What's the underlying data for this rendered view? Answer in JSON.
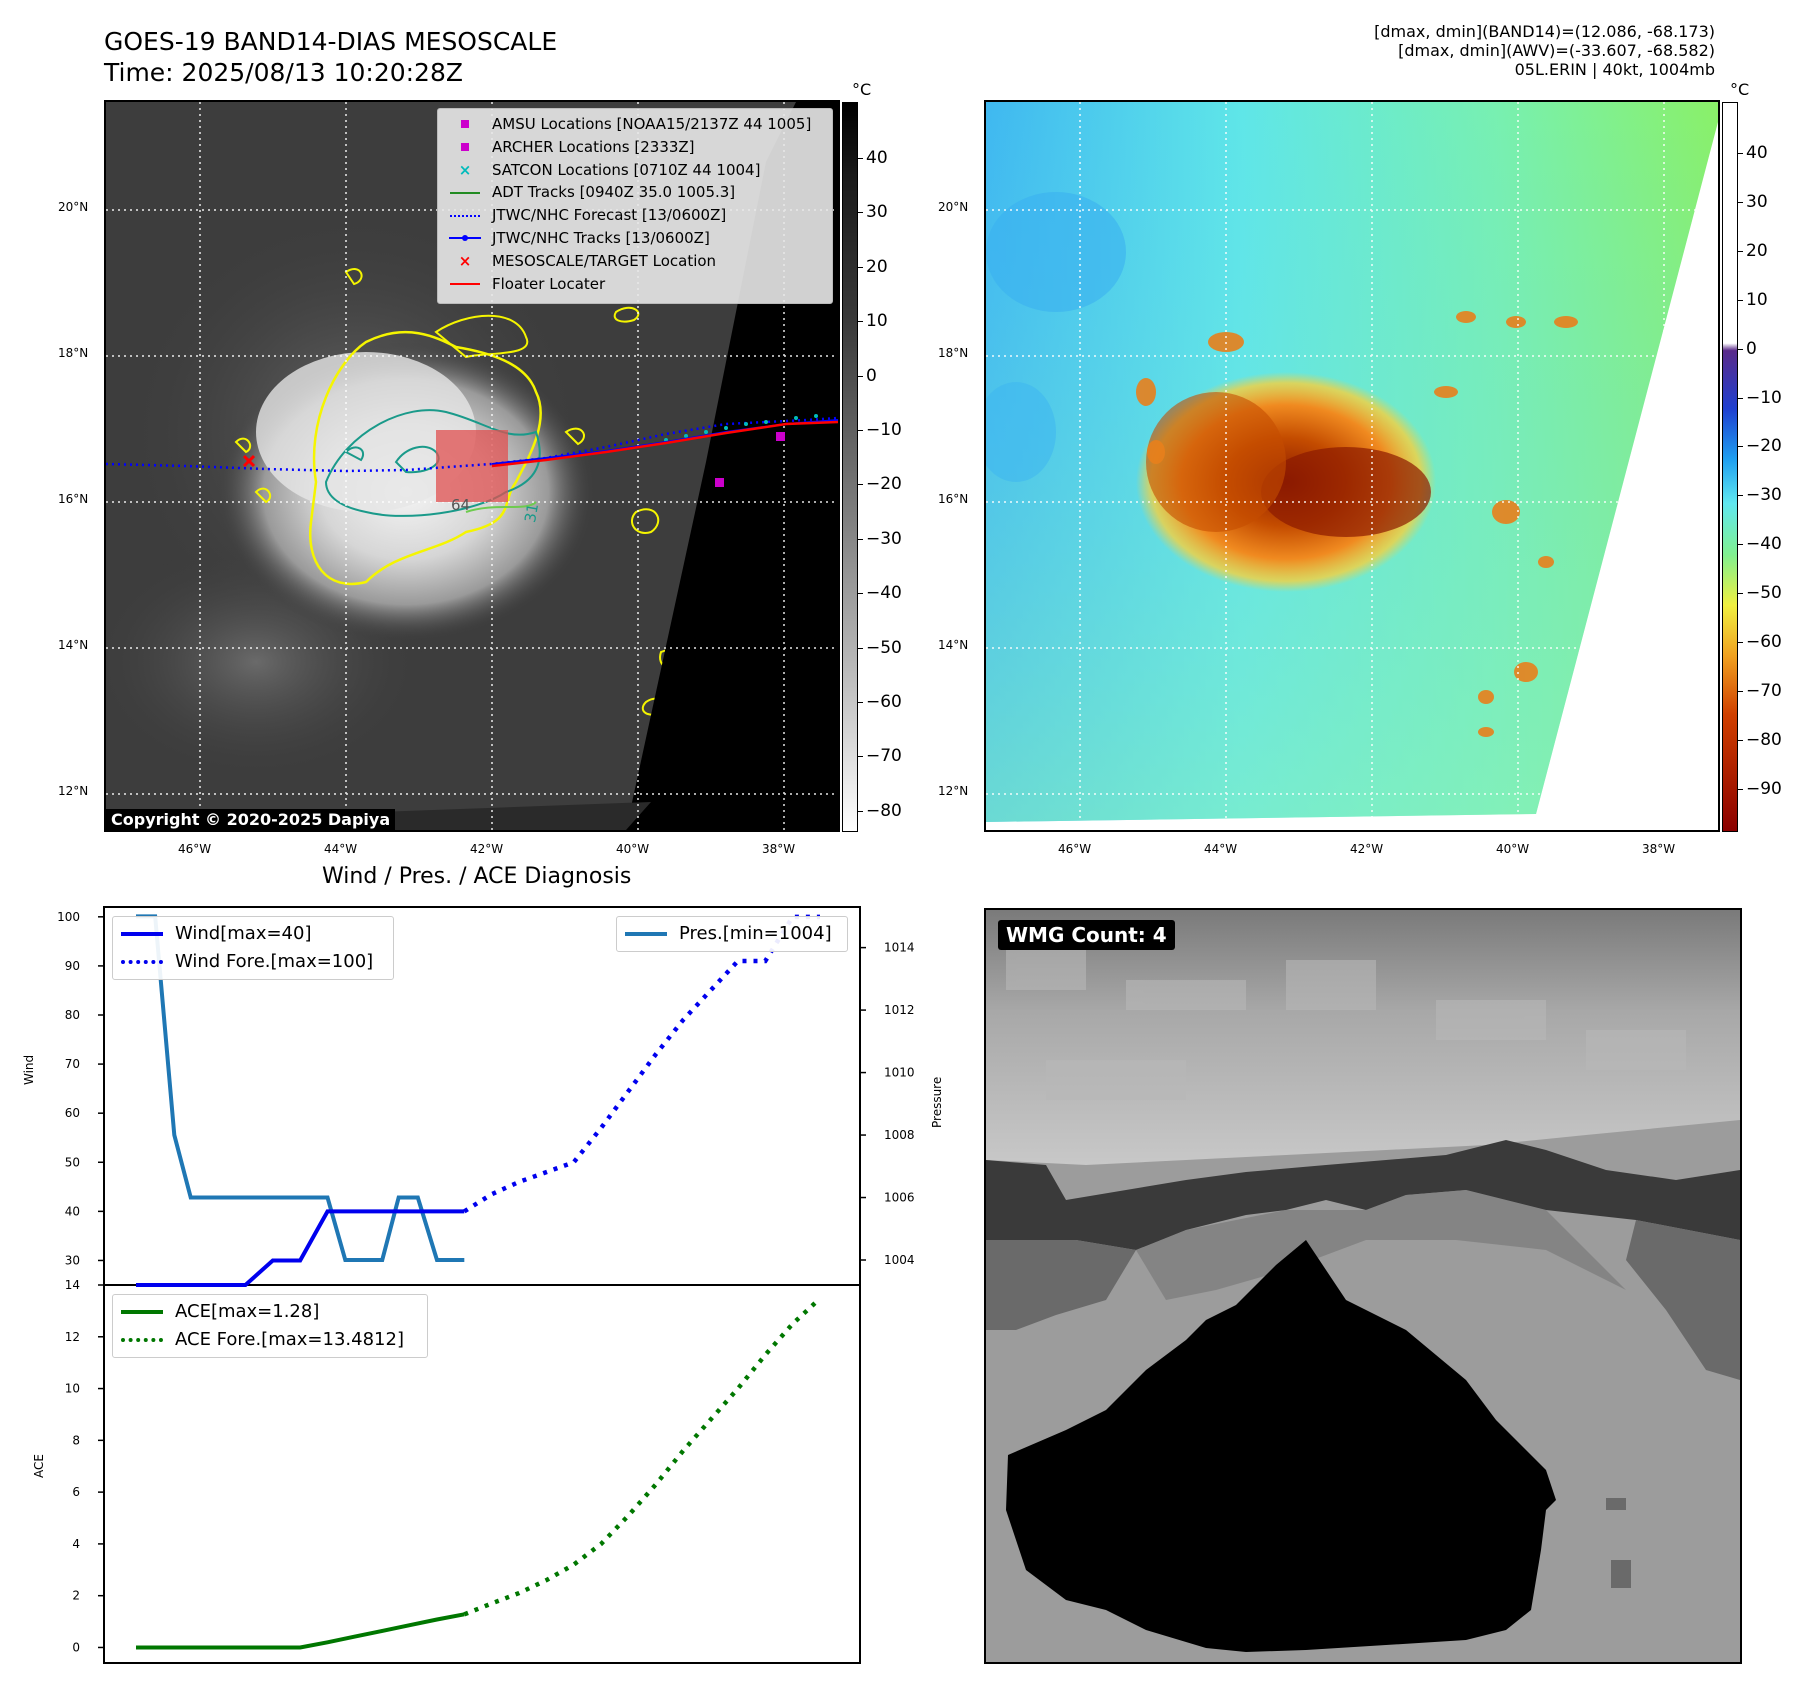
{
  "header": {
    "title_line1": "GOES-19 BAND14-DIAS MESOSCALE",
    "title_line2": "Time: 2025/08/13 10:20:28Z",
    "info_line1": "[dmax, dmin](BAND14)=(12.086, -68.173)",
    "info_line2": "[dmax, dmin](AWV)=(-33.607, -68.582)",
    "info_line3": "05L.ERIN | 40kt, 1004mb"
  },
  "colors": {
    "amsu": "#cc00cc",
    "archer": "#cc00cc",
    "satcon": "#00bbbb",
    "adt": "#228b22",
    "forecast": "#0000ff",
    "tracks": "#0000ff",
    "target": "#ff0000",
    "floater": "#ff0000",
    "wind": "#0000ee",
    "pres": "#1f77b4",
    "ace": "#007700",
    "contour_yellow": "#f5f500",
    "contour_teal": "#1a9a8a"
  },
  "map_left": {
    "lat_labels": [
      "20°N",
      "18°N",
      "16°N",
      "14°N",
      "12°N"
    ],
    "lon_labels": [
      "46°W",
      "44°W",
      "42°W",
      "40°W",
      "38°W"
    ],
    "colorbar_unit": "°C",
    "colorbar_ticks": [
      "40",
      "30",
      "20",
      "10",
      "0",
      "−10",
      "−20",
      "−30",
      "−40",
      "−50",
      "−60",
      "−70",
      "−80"
    ],
    "copyright": "Copyright © 2020-2025 Dapiya",
    "contour_labels": [
      "64",
      "31"
    ],
    "legend": [
      {
        "symbol": "square-icon",
        "label": "AMSU Locations [NOAA15/2137Z 44 1005]"
      },
      {
        "symbol": "square-icon",
        "label": "ARCHER Locations [2333Z]"
      },
      {
        "symbol": "x-icon",
        "label": "SATCON Locations [0710Z 44 1004]"
      },
      {
        "symbol": "line-icon",
        "label": "ADT Tracks [0940Z 35.0 1005.3]"
      },
      {
        "symbol": "dotted-line-icon",
        "label": "JTWC/NHC Forecast [13/0600Z]"
      },
      {
        "symbol": "line-dot-icon",
        "label": "JTWC/NHC Tracks [13/0600Z]"
      },
      {
        "symbol": "x-icon",
        "label": "MESOSCALE/TARGET Location"
      },
      {
        "symbol": "line-icon",
        "label": "Floater Locater"
      }
    ]
  },
  "map_right": {
    "lat_labels": [
      "20°N",
      "18°N",
      "16°N",
      "14°N",
      "12°N"
    ],
    "lon_labels": [
      "46°W",
      "44°W",
      "42°W",
      "40°W",
      "38°W"
    ],
    "colorbar_unit": "°C",
    "colorbar_ticks": [
      "40",
      "30",
      "20",
      "10",
      "0",
      "−10",
      "−20",
      "−30",
      "−40",
      "−50",
      "−60",
      "−70",
      "−80",
      "−90"
    ]
  },
  "wmg": {
    "label": "WMG Count: 4"
  },
  "chart_data": [
    {
      "type": "line",
      "title": "Wind / Pres. / ACE Diagnosis",
      "xlabel": "",
      "ylabel": "Wind",
      "ylabel_right": "Pressure",
      "ylim": [
        25,
        102
      ],
      "ylim_right": [
        1003.2,
        1015.3
      ],
      "yticks": [
        30,
        40,
        50,
        60,
        70,
        80,
        90,
        100
      ],
      "yticks_right": [
        1004,
        1006,
        1008,
        1010,
        1012,
        1014
      ],
      "series": [
        {
          "name": "Wind[max=40]",
          "style": "solid",
          "axis": "left",
          "x": [
            0,
            1,
            2,
            3,
            4,
            5,
            6,
            7,
            8,
            9,
            10,
            11,
            12
          ],
          "values": [
            25,
            25,
            25,
            25,
            25,
            30,
            30,
            40,
            40,
            40,
            40,
            40,
            40
          ]
        },
        {
          "name": "Wind Fore.[max=100]",
          "style": "dotted",
          "axis": "left",
          "x": [
            12,
            13,
            14,
            15,
            16,
            17,
            18,
            19,
            20,
            21,
            22,
            23,
            24,
            25
          ],
          "values": [
            40,
            43.5,
            46,
            48,
            50,
            57,
            64.5,
            72,
            79,
            85,
            91,
            91,
            100,
            100
          ]
        },
        {
          "name": "Pres.[min=1004]",
          "style": "solid",
          "axis": "right",
          "x": [
            0,
            0.7,
            1.4,
            2,
            3,
            4,
            5,
            6,
            7,
            7.65,
            8,
            9,
            9.6,
            10.3,
            11,
            11.6,
            12
          ],
          "values": [
            1015,
            1015,
            1008,
            1006,
            1006,
            1006,
            1006,
            1006,
            1006,
            1004,
            1004,
            1004,
            1006,
            1006,
            1004,
            1004,
            1004
          ]
        }
      ]
    },
    {
      "type": "line",
      "title": "",
      "xlabel": "",
      "ylabel": "ACE",
      "ylim": [
        -0.6,
        14
      ],
      "yticks": [
        0,
        2,
        4,
        6,
        8,
        10,
        12,
        14
      ],
      "series": [
        {
          "name": "ACE[max=1.28]",
          "style": "solid",
          "x": [
            0,
            1,
            2,
            3,
            4,
            5,
            6,
            7,
            8,
            9,
            10,
            11,
            12
          ],
          "values": [
            0,
            0,
            0,
            0,
            0,
            0,
            0,
            0.2,
            0.42,
            0.64,
            0.86,
            1.08,
            1.28
          ]
        },
        {
          "name": "ACE Fore.[max=13.4812]",
          "style": "dotted",
          "x": [
            12,
            13,
            14,
            15,
            16,
            17,
            18,
            19,
            20,
            21,
            22,
            23,
            24,
            25
          ],
          "values": [
            1.28,
            1.7,
            2.1,
            2.6,
            3.2,
            4.0,
            5.1,
            6.3,
            7.6,
            8.8,
            10.0,
            11.3,
            12.5,
            13.4812
          ]
        }
      ]
    }
  ]
}
